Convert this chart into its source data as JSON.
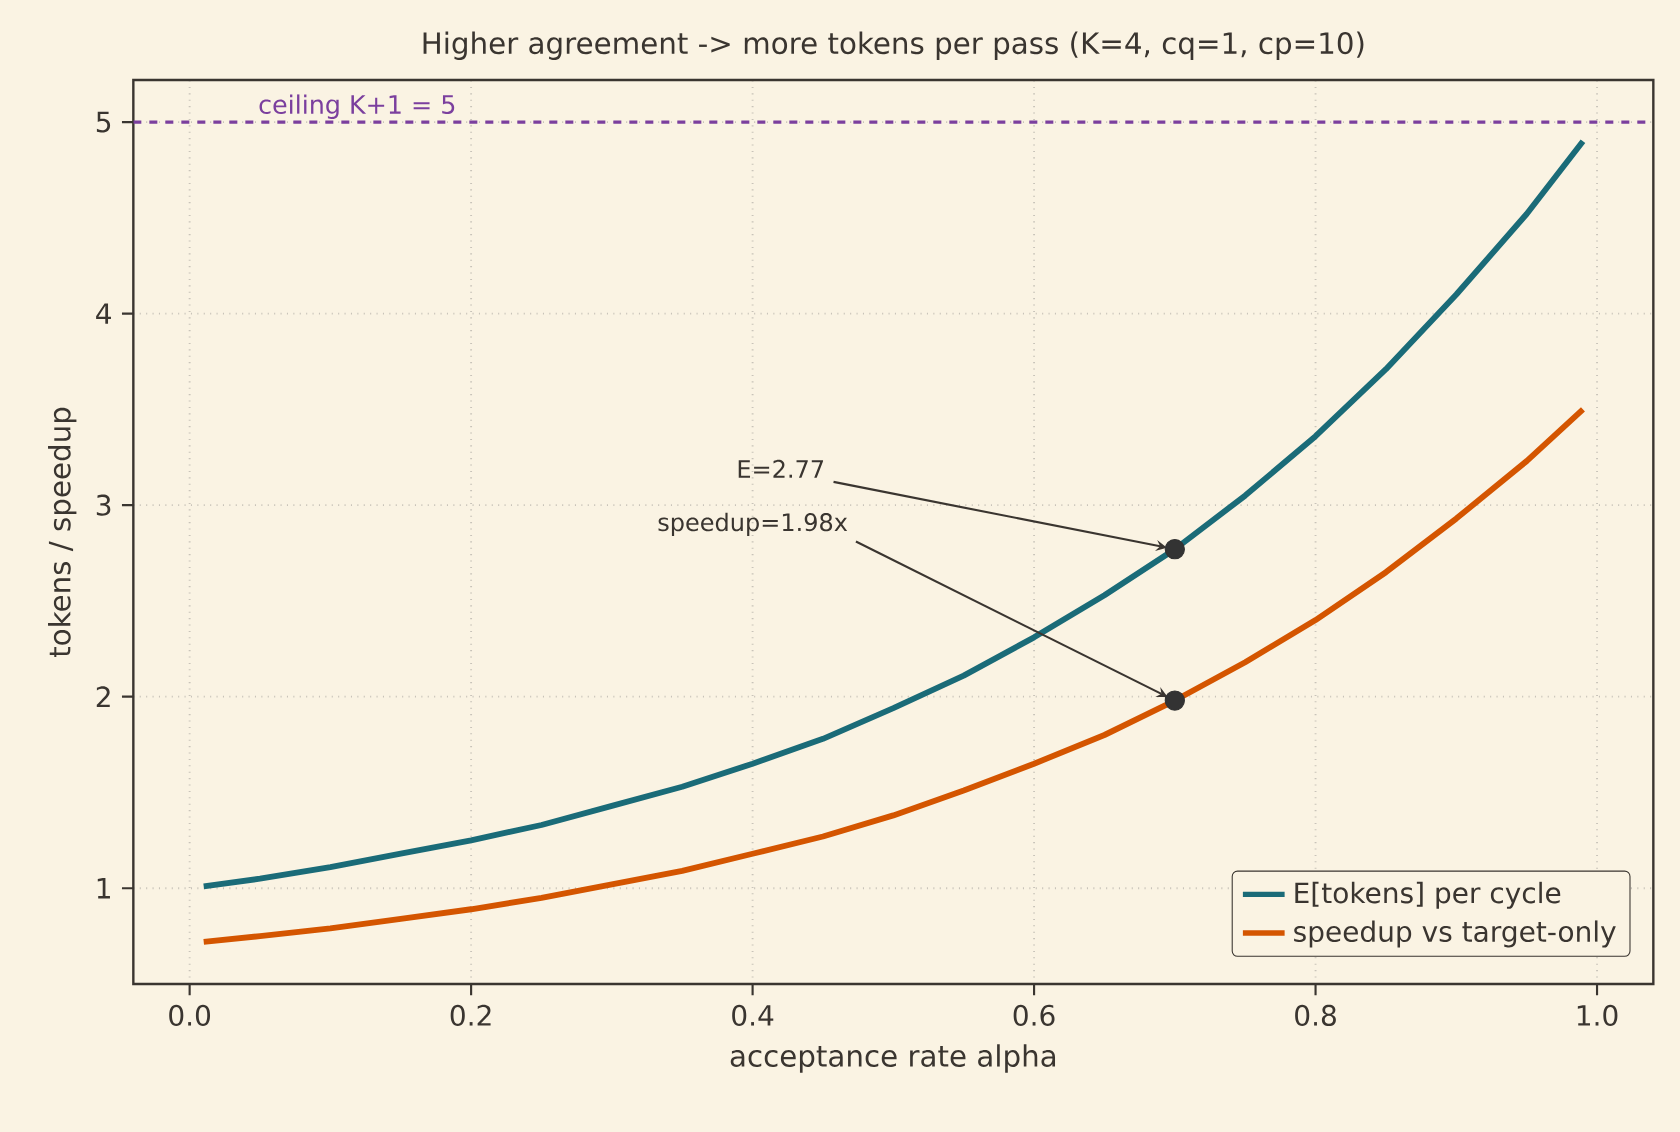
{
  "chart_data": {
    "type": "line",
    "title": "Higher agreement -> more tokens per pass (K=4, cq=1, cp=10)",
    "xlabel": "acceptance rate  alpha",
    "ylabel": "tokens  /  speedup",
    "x": [
      0.01,
      0.05,
      0.1,
      0.15,
      0.2,
      0.25,
      0.3,
      0.35,
      0.4,
      0.45,
      0.5,
      0.55,
      0.6,
      0.65,
      0.7,
      0.75,
      0.8,
      0.85,
      0.9,
      0.95,
      0.99
    ],
    "series": [
      {
        "name": "E[tokens] per cycle",
        "color": "#1a6b78",
        "values": [
          1.01,
          1.05,
          1.11,
          1.18,
          1.25,
          1.33,
          1.43,
          1.53,
          1.65,
          1.78,
          1.94,
          2.11,
          2.31,
          2.53,
          2.77,
          3.05,
          3.36,
          3.71,
          4.1,
          4.52,
          4.9
        ]
      },
      {
        "name": "speedup vs target-only",
        "color": "#d45500",
        "values": [
          0.72,
          0.75,
          0.79,
          0.84,
          0.89,
          0.95,
          1.02,
          1.09,
          1.18,
          1.27,
          1.38,
          1.51,
          1.65,
          1.8,
          1.98,
          2.18,
          2.4,
          2.65,
          2.93,
          3.23,
          3.5
        ]
      },
      {
        "type": "scatter",
        "color": "#333333",
        "marker": "circle",
        "x": [
          0.7,
          0.7
        ],
        "values": [
          2.77,
          1.98
        ]
      }
    ],
    "xlim": [
      -0.04,
      1.04
    ],
    "ylim": [
      0.5,
      5.22
    ],
    "xticks": [
      {
        "value": 0,
        "label": "0.0"
      },
      0.2,
      0.4,
      0.6,
      0.8,
      {
        "value": 1,
        "label": "1.0"
      }
    ],
    "yticks": [
      1,
      2,
      3,
      4,
      5
    ],
    "ref_lines": [
      {
        "axis": "y",
        "value": 5,
        "label": "ceiling K+1 = 5",
        "color": "#7b3f9e",
        "line_style": "dashed"
      }
    ],
    "annotations": [
      {
        "text": "E=2.77",
        "x": 0.7,
        "y": 2.77
      },
      {
        "text": "speedup=1.98x",
        "x": 0.7,
        "y": 1.98
      }
    ],
    "grid": true,
    "legend": "bottom right",
    "marker": "none",
    "line_style": "solid"
  }
}
